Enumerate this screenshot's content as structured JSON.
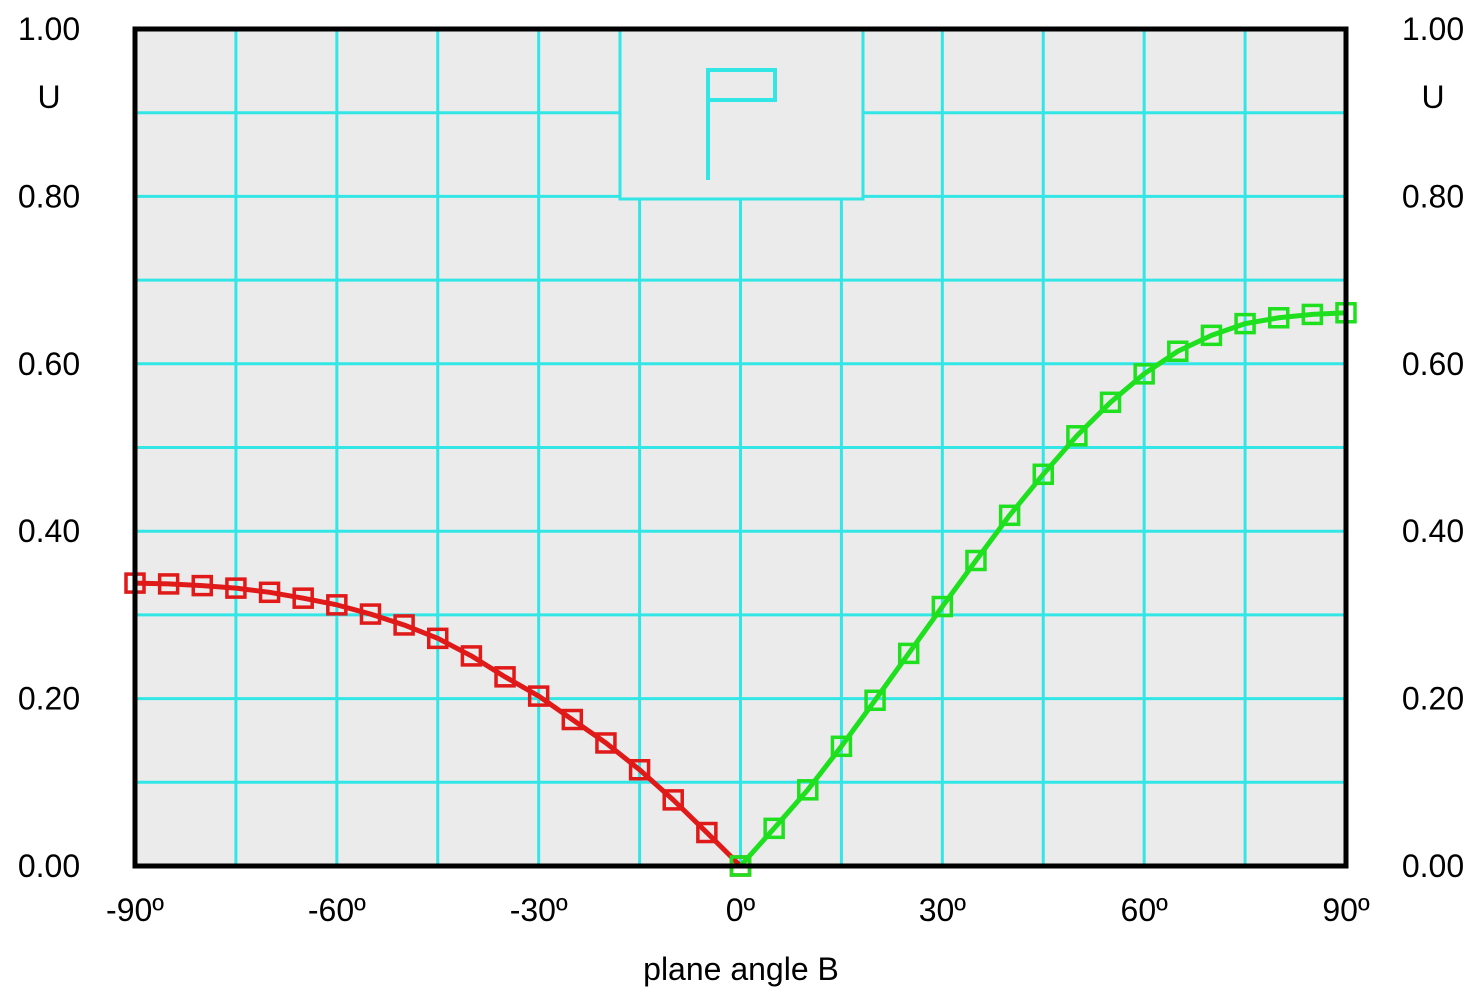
{
  "chart_data": {
    "type": "line",
    "xlabel": "plane angle B",
    "ylabel": "U",
    "ylabel_right": "U",
    "xlim": [
      -90,
      90
    ],
    "ylim": [
      0,
      1
    ],
    "x_ticks": [
      "-90º",
      "-60º",
      "-30º",
      "0º",
      "30º",
      "60º",
      "90º"
    ],
    "y_ticks": [
      "0.00",
      "0.20",
      "0.40",
      "0.60",
      "0.80",
      "1.00"
    ],
    "grid": true,
    "inset_label": "P",
    "colors": {
      "background": "#ebebeb",
      "grid": "#33e6e6",
      "frame": "#000000",
      "series_negative": "#e01919",
      "series_positive": "#1ee01e"
    },
    "series": [
      {
        "color": "#e01919",
        "marker": "square",
        "x": [
          -90,
          -85,
          -80,
          -75,
          -70,
          -65,
          -60,
          -55,
          -50,
          -45,
          -40,
          -35,
          -30,
          -25,
          -20,
          -15,
          -10,
          -5,
          0
        ],
        "y": [
          0.338,
          0.337,
          0.335,
          0.332,
          0.327,
          0.32,
          0.312,
          0.301,
          0.288,
          0.272,
          0.251,
          0.226,
          0.203,
          0.175,
          0.147,
          0.115,
          0.079,
          0.04,
          0.0
        ]
      },
      {
        "color": "#1ee01e",
        "marker": "square",
        "x": [
          0,
          5,
          10,
          15,
          20,
          25,
          30,
          35,
          40,
          45,
          50,
          55,
          60,
          65,
          70,
          75,
          80,
          85,
          90
        ],
        "y": [
          0.0,
          0.045,
          0.091,
          0.143,
          0.198,
          0.254,
          0.31,
          0.365,
          0.419,
          0.468,
          0.514,
          0.554,
          0.588,
          0.615,
          0.634,
          0.648,
          0.655,
          0.659,
          0.661
        ]
      }
    ]
  }
}
